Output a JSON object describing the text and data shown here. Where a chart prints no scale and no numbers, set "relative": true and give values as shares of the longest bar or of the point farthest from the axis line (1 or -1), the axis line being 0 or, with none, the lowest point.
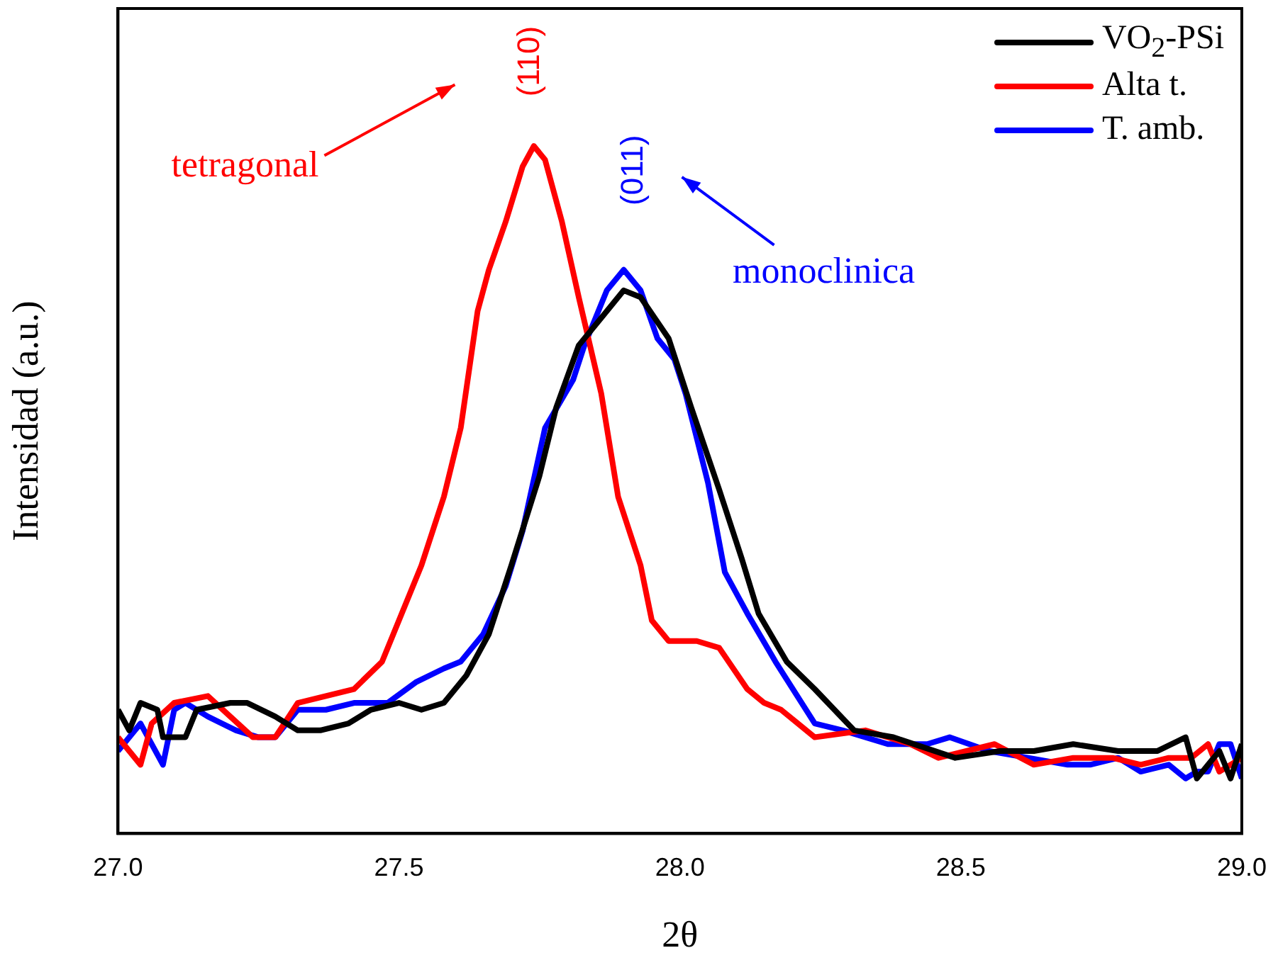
{
  "chart_data": {
    "type": "line",
    "relative": true,
    "xlabel": "2θ",
    "ylabel": "Intensidad (a.u.)",
    "legend": "top right",
    "marker": "none",
    "line_style": "solid",
    "xlim": [
      27,
      29
    ],
    "xticks": [
      {
        "value": 27,
        "label": "27.0"
      },
      {
        "value": 27.5,
        "label": "27.5"
      },
      {
        "value": 28,
        "label": "28.0"
      },
      {
        "value": 28.5,
        "label": "28.5"
      },
      {
        "value": 29,
        "label": "29.0"
      }
    ],
    "annotations": [
      "(110)",
      "(011)",
      "tetragonal",
      "monoclinica"
    ],
    "series": [
      {
        "name": "VO$_{2}$-PSi",
        "color": "#000000",
        "x": [
          27.0,
          27.02,
          27.04,
          27.07,
          27.08,
          27.12,
          27.14,
          27.2,
          27.23,
          27.28,
          27.32,
          27.36,
          27.41,
          27.45,
          27.5,
          27.54,
          27.58,
          27.62,
          27.66,
          27.7,
          27.75,
          27.78,
          27.82,
          27.87,
          27.9,
          27.93,
          27.98,
          28.02,
          28.07,
          28.11,
          28.14,
          28.19,
          28.24,
          28.31,
          28.38,
          28.49,
          28.57,
          28.63,
          28.7,
          28.78,
          28.85,
          28.9,
          28.92,
          28.94,
          28.96,
          28.98,
          29.0
        ],
        "values": [
          0.18,
          0.15,
          0.19,
          0.18,
          0.14,
          0.14,
          0.18,
          0.19,
          0.19,
          0.17,
          0.15,
          0.15,
          0.16,
          0.18,
          0.19,
          0.18,
          0.19,
          0.23,
          0.29,
          0.39,
          0.52,
          0.62,
          0.71,
          0.76,
          0.79,
          0.78,
          0.72,
          0.62,
          0.5,
          0.4,
          0.32,
          0.25,
          0.21,
          0.15,
          0.14,
          0.11,
          0.12,
          0.12,
          0.13,
          0.12,
          0.12,
          0.14,
          0.08,
          0.1,
          0.12,
          0.08,
          0.13
        ]
      },
      {
        "name": "Alta t.",
        "color": "#ff0000",
        "x": [
          27.0,
          27.04,
          27.06,
          27.1,
          27.16,
          27.2,
          27.24,
          27.28,
          27.32,
          27.37,
          27.42,
          27.47,
          27.49,
          27.54,
          27.58,
          27.61,
          27.64,
          27.66,
          27.69,
          27.72,
          27.74,
          27.76,
          27.79,
          27.82,
          27.86,
          27.89,
          27.93,
          27.95,
          27.98,
          28.03,
          28.07,
          28.12,
          28.15,
          28.18,
          28.24,
          28.33,
          28.41,
          28.46,
          28.56,
          28.63,
          28.7,
          28.77,
          28.82,
          28.87,
          28.91,
          28.94,
          28.96,
          29.0
        ],
        "values": [
          0.14,
          0.1,
          0.16,
          0.19,
          0.2,
          0.17,
          0.14,
          0.14,
          0.19,
          0.2,
          0.21,
          0.25,
          0.29,
          0.39,
          0.49,
          0.59,
          0.76,
          0.82,
          0.89,
          0.97,
          1.0,
          0.98,
          0.89,
          0.78,
          0.64,
          0.49,
          0.39,
          0.31,
          0.28,
          0.28,
          0.27,
          0.21,
          0.19,
          0.18,
          0.14,
          0.15,
          0.13,
          0.11,
          0.13,
          0.1,
          0.11,
          0.11,
          0.1,
          0.11,
          0.11,
          0.13,
          0.09,
          0.11
        ]
      },
      {
        "name": "T. amb.",
        "color": "#0000ff",
        "x": [
          27.0,
          27.04,
          27.08,
          27.1,
          27.12,
          27.16,
          27.21,
          27.25,
          27.28,
          27.32,
          27.37,
          27.42,
          27.48,
          27.53,
          27.58,
          27.61,
          27.65,
          27.69,
          27.72,
          27.76,
          27.81,
          27.83,
          27.87,
          27.9,
          27.93,
          27.96,
          27.99,
          28.01,
          28.05,
          28.08,
          28.12,
          28.17,
          28.24,
          28.29,
          28.37,
          28.44,
          28.48,
          28.55,
          28.62,
          28.69,
          28.73,
          28.78,
          28.82,
          28.87,
          28.9,
          28.92,
          28.94,
          28.96,
          28.98,
          29.0
        ],
        "values": [
          0.12,
          0.16,
          0.1,
          0.18,
          0.19,
          0.17,
          0.15,
          0.14,
          0.14,
          0.18,
          0.18,
          0.19,
          0.19,
          0.22,
          0.24,
          0.25,
          0.29,
          0.36,
          0.44,
          0.59,
          0.66,
          0.71,
          0.79,
          0.82,
          0.79,
          0.72,
          0.69,
          0.64,
          0.51,
          0.38,
          0.32,
          0.25,
          0.16,
          0.15,
          0.13,
          0.13,
          0.14,
          0.12,
          0.11,
          0.1,
          0.1,
          0.11,
          0.09,
          0.1,
          0.08,
          0.09,
          0.09,
          0.13,
          0.13,
          0.08
        ]
      }
    ]
  }
}
